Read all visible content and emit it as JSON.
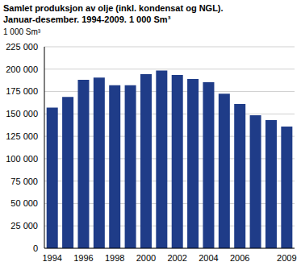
{
  "chart_data": {
    "type": "bar",
    "title": "Samlet produksjon av olje (inkl. kondensat og NGL).",
    "subtitle": "Januar-desember. 1994-2009. 1 000 Sm³",
    "y_label": "1 000 Sm³",
    "categories": [
      "1994",
      null,
      "1996",
      null,
      "1998",
      null,
      "2000",
      null,
      "2002",
      null,
      "2004",
      null,
      "2006",
      null,
      null,
      "2009"
    ],
    "values": [
      157000,
      169000,
      188000,
      190500,
      182000,
      182000,
      194500,
      198500,
      193500,
      189000,
      185500,
      172500,
      161000,
      148500,
      143000,
      136000
    ],
    "color": "#1f3c88",
    "ylim": [
      0,
      225000
    ],
    "yticks": [
      {
        "value": 0,
        "label": "0"
      },
      {
        "value": 25000,
        "label": "25 000"
      },
      {
        "value": 50000,
        "label": "50 000"
      },
      {
        "value": 75000,
        "label": "75 000"
      },
      {
        "value": 100000,
        "label": "100 000"
      },
      {
        "value": 125000,
        "label": "125 000"
      },
      {
        "value": 150000,
        "label": "150 000"
      },
      {
        "value": 175000,
        "label": "175 000"
      },
      {
        "value": 200000,
        "label": "200 000"
      },
      {
        "value": 225000,
        "label": "225 000"
      }
    ],
    "grid": true
  }
}
